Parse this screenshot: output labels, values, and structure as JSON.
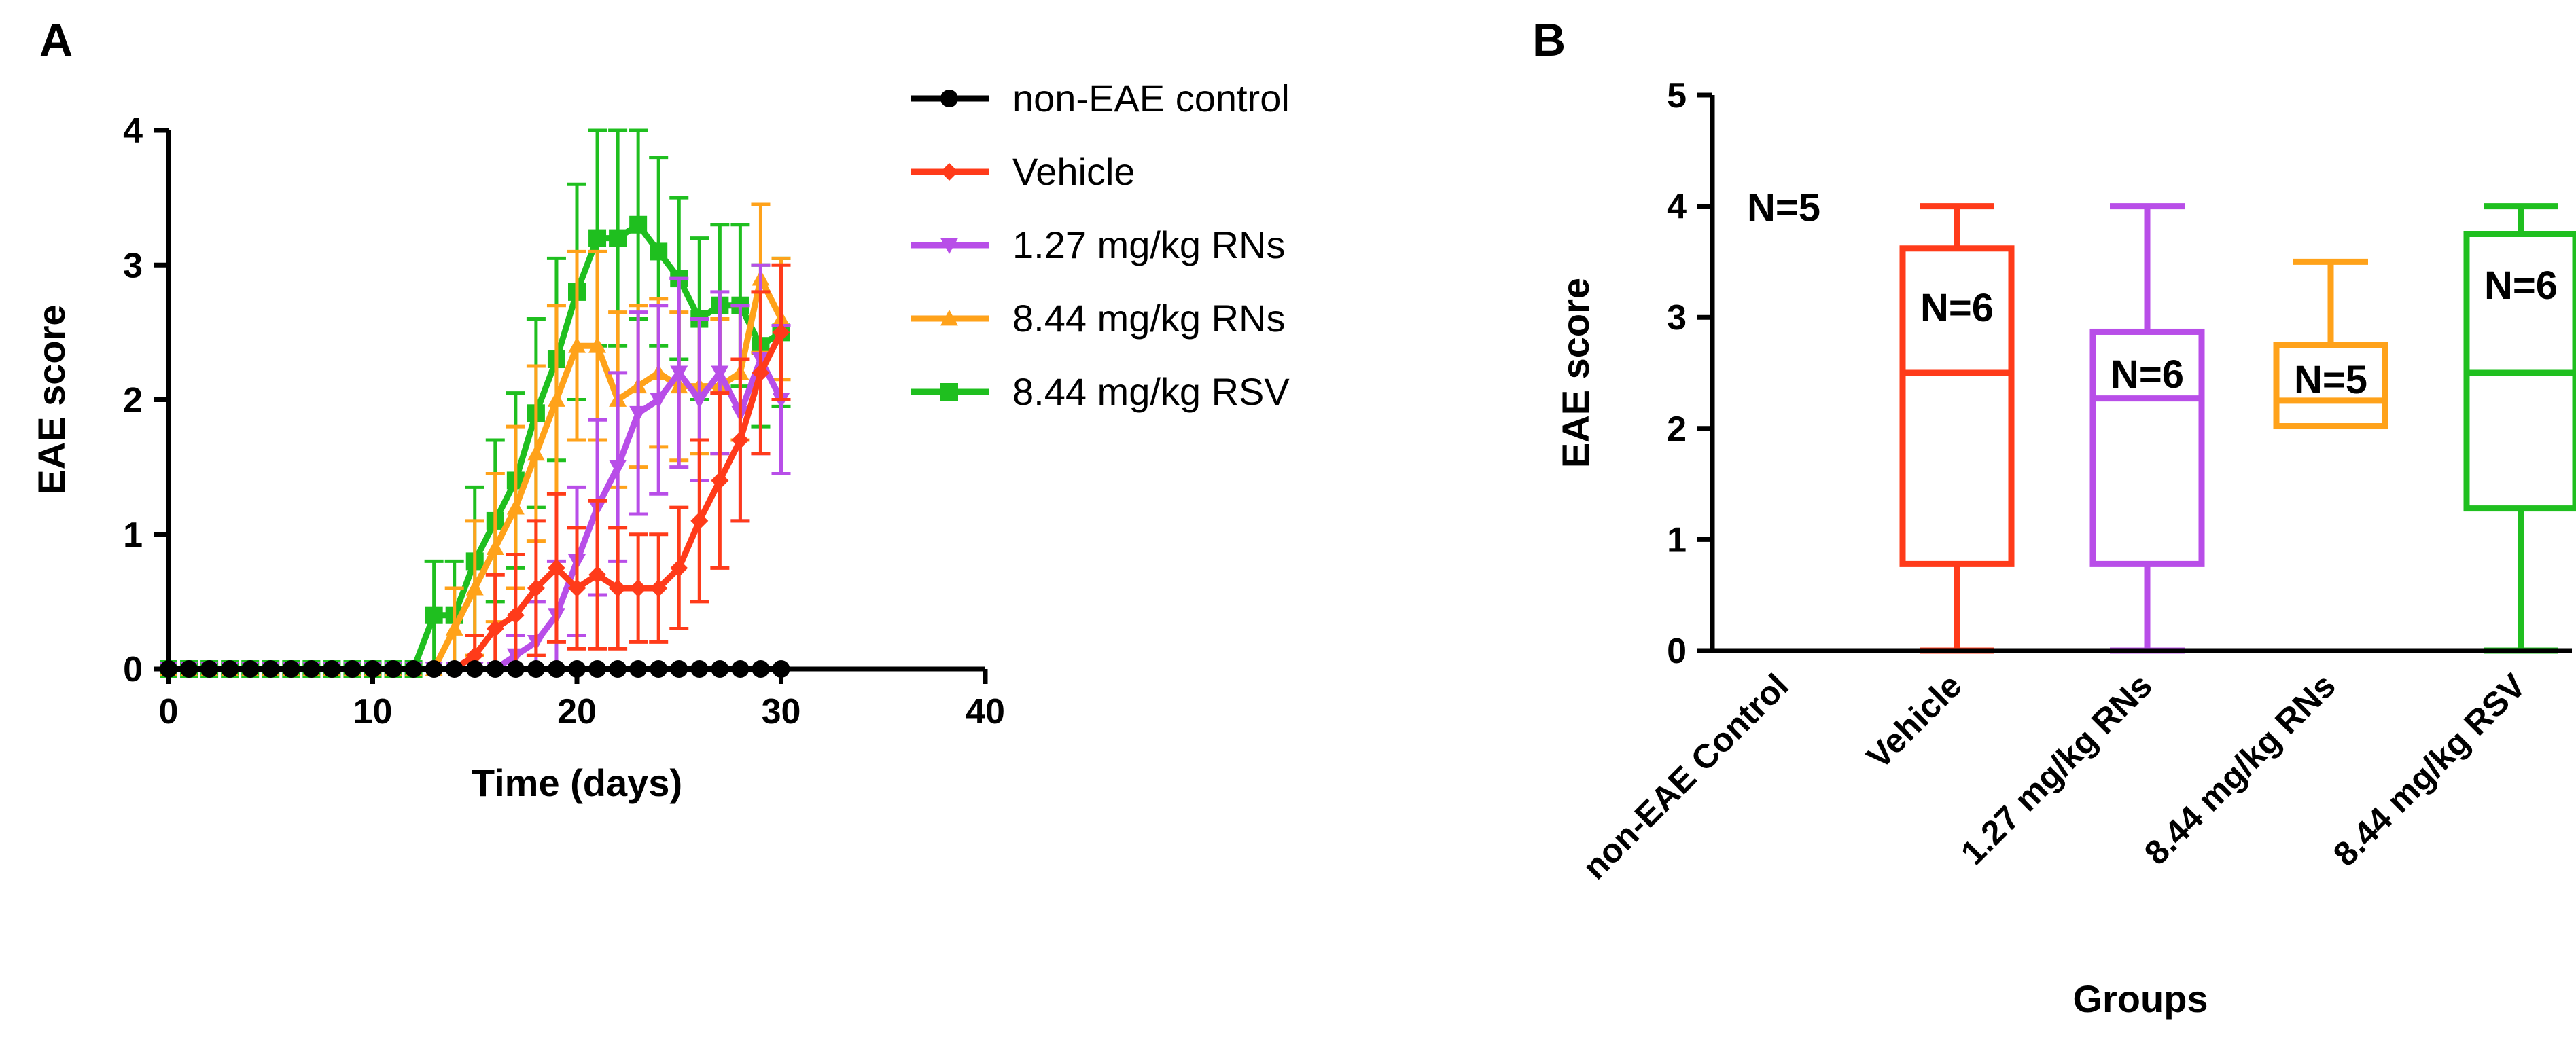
{
  "panel_labels": {
    "a": "A",
    "b": "B"
  },
  "chart_data": [
    {
      "type": "line",
      "panel": "A",
      "title": "",
      "xlabel": "Time (days)",
      "ylabel": "EAE score",
      "xlim": [
        0,
        40
      ],
      "ylim": [
        0,
        4
      ],
      "xticks": [
        0,
        10,
        20,
        30,
        40
      ],
      "yticks": [
        0,
        1,
        2,
        3,
        4
      ],
      "legend_position": "right",
      "series": [
        {
          "name": "non-EAE control",
          "color": "#000000",
          "marker": "circle",
          "x": [
            0,
            1,
            2,
            3,
            4,
            5,
            6,
            7,
            8,
            9,
            10,
            11,
            12,
            13,
            14,
            15,
            16,
            17,
            18,
            19,
            20,
            21,
            22,
            23,
            24,
            25,
            26,
            27,
            28,
            29,
            30
          ],
          "y": [
            0,
            0,
            0,
            0,
            0,
            0,
            0,
            0,
            0,
            0,
            0,
            0,
            0,
            0,
            0,
            0,
            0,
            0,
            0,
            0,
            0,
            0,
            0,
            0,
            0,
            0,
            0,
            0,
            0,
            0,
            0
          ],
          "err": []
        },
        {
          "name": "Vehicle",
          "color": "#ff3b1a",
          "marker": "diamond",
          "x": [
            0,
            1,
            2,
            3,
            4,
            5,
            6,
            7,
            8,
            9,
            10,
            11,
            12,
            13,
            14,
            15,
            16,
            17,
            18,
            19,
            20,
            21,
            22,
            23,
            24,
            25,
            26,
            27,
            28,
            29,
            30
          ],
          "y": [
            0,
            0,
            0,
            0,
            0,
            0,
            0,
            0,
            0,
            0,
            0,
            0,
            0,
            0,
            0,
            0.1,
            0.3,
            0.4,
            0.6,
            0.75,
            0.6,
            0.7,
            0.6,
            0.6,
            0.6,
            0.75,
            1.1,
            1.4,
            1.7,
            2.2,
            2.5
          ],
          "err": [
            0,
            0,
            0,
            0,
            0,
            0,
            0,
            0,
            0,
            0,
            0,
            0,
            0,
            0,
            0,
            0.15,
            0.4,
            0.45,
            0.5,
            0.55,
            0.45,
            0.55,
            0.45,
            0.4,
            0.4,
            0.45,
            0.6,
            0.65,
            0.6,
            0.6,
            0.5
          ]
        },
        {
          "name": "1.27 mg/kg RNs",
          "color": "#b84ee8",
          "marker": "triangle-down",
          "x": [
            0,
            1,
            2,
            3,
            4,
            5,
            6,
            7,
            8,
            9,
            10,
            11,
            12,
            13,
            14,
            15,
            16,
            17,
            18,
            19,
            20,
            21,
            22,
            23,
            24,
            25,
            26,
            27,
            28,
            29,
            30
          ],
          "y": [
            0,
            0,
            0,
            0,
            0,
            0,
            0,
            0,
            0,
            0,
            0,
            0,
            0,
            0,
            0,
            0,
            0,
            0.1,
            0.2,
            0.4,
            0.8,
            1.2,
            1.5,
            1.9,
            2.0,
            2.2,
            2.0,
            2.2,
            1.9,
            2.3,
            2.0
          ],
          "err": [
            0,
            0,
            0,
            0,
            0,
            0,
            0,
            0,
            0,
            0,
            0,
            0,
            0,
            0,
            0,
            0,
            0,
            0.15,
            0.3,
            0.4,
            0.55,
            0.65,
            0.7,
            0.75,
            0.7,
            0.7,
            0.6,
            0.6,
            0.8,
            0.7,
            0.55
          ]
        },
        {
          "name": "8.44 mg/kg RNs",
          "color": "#ffa21a",
          "marker": "triangle-up",
          "x": [
            0,
            1,
            2,
            3,
            4,
            5,
            6,
            7,
            8,
            9,
            10,
            11,
            12,
            13,
            14,
            15,
            16,
            17,
            18,
            19,
            20,
            21,
            22,
            23,
            24,
            25,
            26,
            27,
            28,
            29,
            30
          ],
          "y": [
            0,
            0,
            0,
            0,
            0,
            0,
            0,
            0,
            0,
            0,
            0,
            0,
            0,
            0,
            0.3,
            0.6,
            0.9,
            1.2,
            1.6,
            2.0,
            2.4,
            2.4,
            2.0,
            2.1,
            2.2,
            2.1,
            2.1,
            2.1,
            2.2,
            2.9,
            2.6
          ],
          "err": [
            0,
            0,
            0,
            0,
            0,
            0,
            0,
            0,
            0,
            0,
            0,
            0,
            0,
            0,
            0.3,
            0.5,
            0.55,
            0.6,
            0.65,
            0.7,
            0.7,
            0.7,
            0.65,
            0.6,
            0.55,
            0.55,
            0.5,
            0.5,
            0.5,
            0.55,
            0.45
          ]
        },
        {
          "name": "8.44 mg/kg RSV",
          "color": "#1fbf1f",
          "marker": "square",
          "x": [
            0,
            1,
            2,
            3,
            4,
            5,
            6,
            7,
            8,
            9,
            10,
            11,
            12,
            13,
            14,
            15,
            16,
            17,
            18,
            19,
            20,
            21,
            22,
            23,
            24,
            25,
            26,
            27,
            28,
            29,
            30
          ],
          "y": [
            0,
            0,
            0,
            0,
            0,
            0,
            0,
            0,
            0,
            0,
            0,
            0,
            0,
            0.4,
            0.4,
            0.8,
            1.1,
            1.4,
            1.9,
            2.3,
            2.8,
            3.2,
            3.2,
            3.3,
            3.1,
            2.9,
            2.6,
            2.7,
            2.7,
            2.4,
            2.5
          ],
          "err": [
            0,
            0,
            0,
            0,
            0,
            0,
            0,
            0,
            0,
            0,
            0,
            0,
            0,
            0.4,
            0.4,
            0.55,
            0.6,
            0.65,
            0.7,
            0.75,
            0.8,
            0.8,
            0.8,
            0.7,
            0.7,
            0.6,
            0.6,
            0.6,
            0.6,
            0.6,
            0.55
          ]
        }
      ]
    },
    {
      "type": "box",
      "panel": "B",
      "title": "",
      "xlabel": "Groups",
      "ylabel": "EAE score",
      "ylim": [
        0,
        5
      ],
      "yticks": [
        0,
        1,
        2,
        3,
        4,
        5
      ],
      "categories": [
        "non-EAE Control",
        "Vehicle",
        "1.27 mg/kg RNs",
        "8.44 mg/kg RNs",
        "8.44 mg/kg RSV"
      ],
      "boxes": [
        {
          "category": "non-EAE Control",
          "color": "#000000",
          "min": 0,
          "q1": 0,
          "median": 0,
          "q3": 0,
          "max": 0,
          "n_label": "N=5",
          "n_label_y": 4.0
        },
        {
          "category": "Vehicle",
          "color": "#ff3b1a",
          "min": 0,
          "q1": 0.78,
          "median": 2.5,
          "q3": 3.62,
          "max": 4.0,
          "n_label": "N=6",
          "n_label_y": 3.1
        },
        {
          "category": "1.27 mg/kg RNs",
          "color": "#b84ee8",
          "min": 0,
          "q1": 0.78,
          "median": 2.27,
          "q3": 2.87,
          "max": 4.0,
          "n_label": "N=6",
          "n_label_y": 2.5
        },
        {
          "category": "8.44 mg/kg RNs",
          "color": "#ffa21a",
          "min": 2.02,
          "q1": 2.02,
          "median": 2.25,
          "q3": 2.75,
          "max": 3.5,
          "n_label": "N=5",
          "n_label_y": 2.45
        },
        {
          "category": "8.44 mg/kg RSV",
          "color": "#1fbf1f",
          "min": 0,
          "q1": 1.28,
          "median": 2.5,
          "q3": 3.75,
          "max": 4.0,
          "n_label": "N=6",
          "n_label_y": 3.3
        }
      ]
    }
  ]
}
